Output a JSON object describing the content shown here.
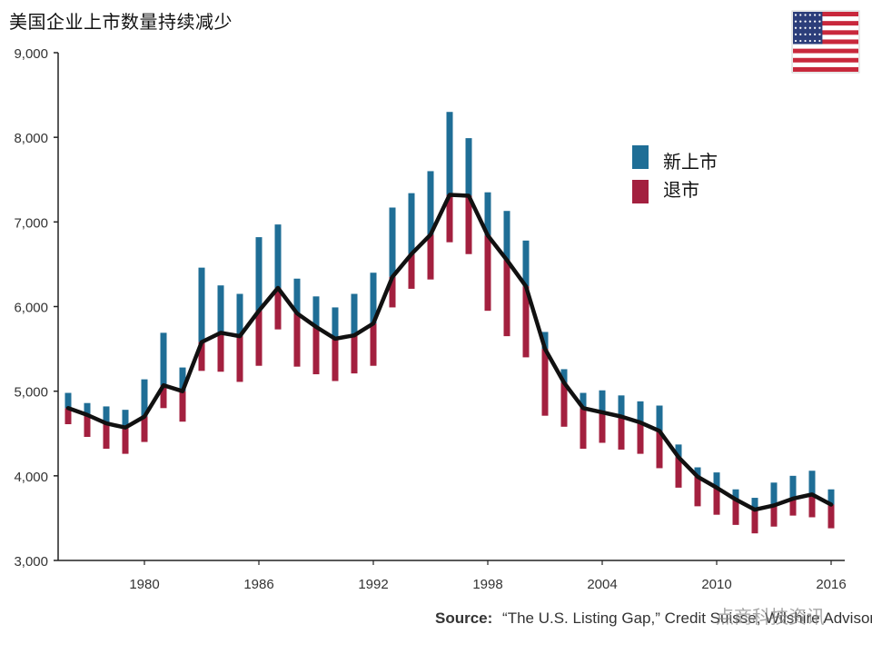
{
  "title": "美国企业上市数量持续减少",
  "flag_icon": "us-flag-icon",
  "source": {
    "label": "Source:",
    "text": "“The U.S. Listing Gap,” Credit Suisse, Wilshire Advisors"
  },
  "watermark": "点商科技资讯",
  "colors": {
    "new_listing": "#1f6e96",
    "delisting": "#a3203f",
    "line": "#111111",
    "axis": "#222222"
  },
  "chart_data": {
    "type": "line",
    "title": "美国企业上市数量持续减少",
    "xlim": [
      1976,
      2016
    ],
    "ylim": [
      3000,
      9000
    ],
    "x_ticks": [
      1980,
      1986,
      1992,
      1998,
      2004,
      2010,
      2016
    ],
    "y_ticks": [
      3000,
      4000,
      5000,
      6000,
      7000,
      8000,
      9000
    ],
    "y_tick_labels": [
      "3,000",
      "4,000",
      "5,000",
      "6,000",
      "7,000",
      "8,000",
      "9,000"
    ],
    "legend": {
      "position": "upper-right-inside",
      "items": [
        {
          "label": "新上市",
          "color": "#1f6e96"
        },
        {
          "label": "退市",
          "color": "#a3203f"
        }
      ]
    },
    "series": [
      {
        "name": "",
        "x": [
          1976,
          1977,
          1978,
          1979,
          1980,
          1981,
          1982,
          1983,
          1984,
          1985,
          1986,
          1987,
          1988,
          1989,
          1990,
          1991,
          1992,
          1993,
          1994,
          1995,
          1996,
          1997,
          1998,
          1999,
          2000,
          2001,
          2002,
          2003,
          2004,
          2005,
          2006,
          2007,
          2008,
          2009,
          2010,
          2011,
          2012,
          2013,
          2014,
          2015,
          2016
        ],
        "listed_companies": [
          4800,
          4720,
          4620,
          4570,
          4700,
          5070,
          5000,
          5580,
          5690,
          5650,
          5950,
          6220,
          5920,
          5760,
          5620,
          5660,
          5800,
          6350,
          6620,
          6850,
          7320,
          7310,
          6840,
          6550,
          6240,
          5500,
          5100,
          4800,
          4750,
          4700,
          4630,
          4530,
          4220,
          3990,
          3860,
          3720,
          3600,
          3650,
          3730,
          3780,
          3660
        ],
        "new_listing_top": [
          4980,
          4860,
          4820,
          4780,
          5140,
          5690,
          5280,
          6460,
          6250,
          6150,
          6820,
          6970,
          6330,
          6120,
          5990,
          6150,
          6400,
          7170,
          7340,
          7600,
          8300,
          7990,
          7350,
          7130,
          6780,
          5700,
          5260,
          4980,
          5010,
          4950,
          4880,
          4830,
          4370,
          4100,
          4040,
          3840,
          3740,
          3920,
          4000,
          4060,
          3840
        ],
        "delisting_bottom": [
          4610,
          4460,
          4320,
          4260,
          4400,
          4800,
          4640,
          5240,
          5230,
          5110,
          5300,
          5730,
          5290,
          5200,
          5120,
          5210,
          5300,
          5990,
          6210,
          6320,
          6760,
          6620,
          5950,
          5650,
          5400,
          4710,
          4580,
          4320,
          4390,
          4310,
          4260,
          4090,
          3860,
          3640,
          3540,
          3420,
          3320,
          3400,
          3530,
          3510,
          3380
        ]
      }
    ]
  }
}
